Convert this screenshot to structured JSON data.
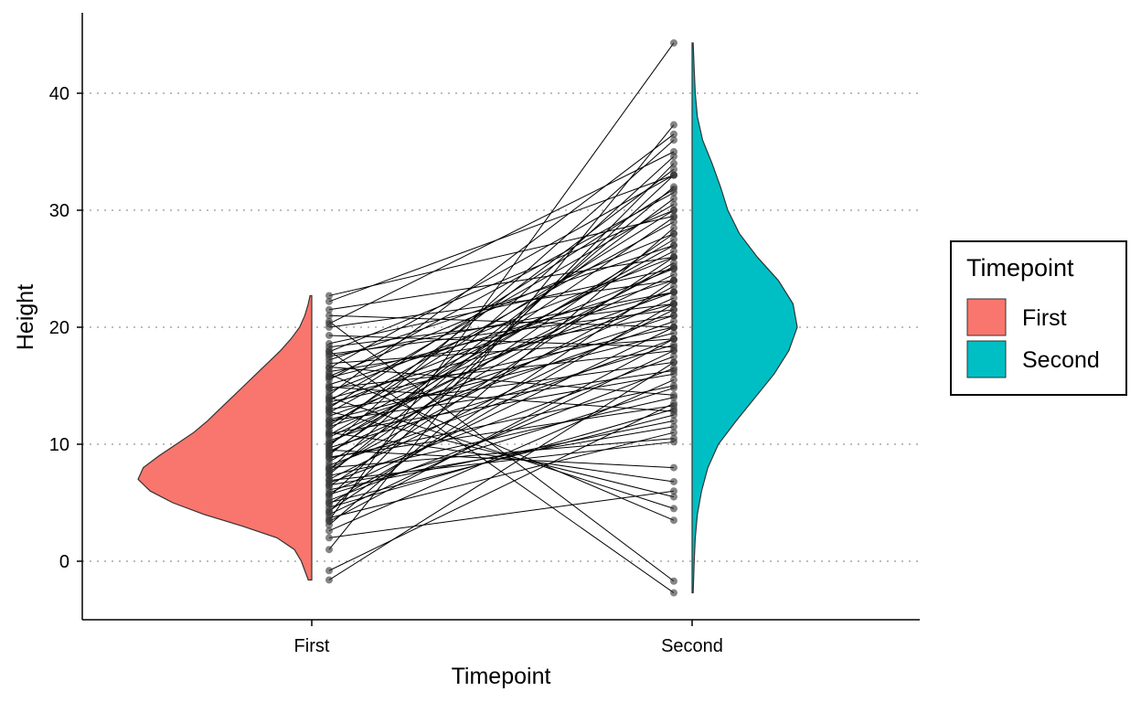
{
  "chart_data": {
    "type": "raincloud",
    "description_free": true,
    "xlabel": "Timepoint",
    "ylabel": "Height",
    "categories": [
      "First",
      "Second"
    ],
    "ylim": [
      -5,
      46
    ],
    "yticks": [
      0,
      10,
      20,
      30,
      40
    ],
    "grid": "horizontal-dotted",
    "legend": {
      "title": "Timepoint",
      "position": "right",
      "entries": [
        {
          "label": "First",
          "color": "#F8766D"
        },
        {
          "label": "Second",
          "color": "#00BFC4"
        }
      ]
    },
    "series": [
      {
        "name": "First",
        "color": "#F8766D",
        "min": -1.6,
        "max": 22.7,
        "mode": 7.2,
        "density": [
          [
            -1.6,
            0.02
          ],
          [
            0,
            0.06
          ],
          [
            1,
            0.1
          ],
          [
            2,
            0.2
          ],
          [
            3,
            0.4
          ],
          [
            4,
            0.62
          ],
          [
            5,
            0.8
          ],
          [
            6,
            0.93
          ],
          [
            7,
            1.0
          ],
          [
            8,
            0.97
          ],
          [
            9,
            0.88
          ],
          [
            10,
            0.78
          ],
          [
            11,
            0.68
          ],
          [
            12,
            0.6
          ],
          [
            13,
            0.53
          ],
          [
            14,
            0.46
          ],
          [
            15,
            0.39
          ],
          [
            16,
            0.32
          ],
          [
            17,
            0.25
          ],
          [
            18,
            0.18
          ],
          [
            19,
            0.12
          ],
          [
            20,
            0.07
          ],
          [
            21,
            0.04
          ],
          [
            22,
            0.02
          ],
          [
            22.7,
            0.01
          ]
        ]
      },
      {
        "name": "Second",
        "color": "#00BFC4",
        "min": -2.7,
        "max": 44.3,
        "mode": 20.0,
        "density": [
          [
            -2.7,
            0.01
          ],
          [
            0,
            0.02
          ],
          [
            2,
            0.03
          ],
          [
            4,
            0.05
          ],
          [
            6,
            0.09
          ],
          [
            8,
            0.15
          ],
          [
            10,
            0.25
          ],
          [
            12,
            0.42
          ],
          [
            14,
            0.6
          ],
          [
            16,
            0.78
          ],
          [
            18,
            0.92
          ],
          [
            20,
            1.0
          ],
          [
            22,
            0.96
          ],
          [
            24,
            0.82
          ],
          [
            26,
            0.62
          ],
          [
            28,
            0.45
          ],
          [
            30,
            0.34
          ],
          [
            32,
            0.27
          ],
          [
            34,
            0.19
          ],
          [
            36,
            0.1
          ],
          [
            38,
            0.05
          ],
          [
            40,
            0.03
          ],
          [
            42,
            0.02
          ],
          [
            44.3,
            0.01
          ]
        ]
      }
    ],
    "paired_points": [
      [
        22.7,
        29.5
      ],
      [
        22.2,
        33
      ],
      [
        21.5,
        26
      ],
      [
        21,
        20
      ],
      [
        20.3,
        35
      ],
      [
        20,
        24
      ],
      [
        18.6,
        25
      ],
      [
        18.3,
        22
      ],
      [
        17.9,
        30
      ],
      [
        17.5,
        23
      ],
      [
        17.2,
        27
      ],
      [
        16.9,
        19
      ],
      [
        16.5,
        33
      ],
      [
        16.2,
        21
      ],
      [
        15.8,
        28
      ],
      [
        15.5,
        31.5
      ],
      [
        15.1,
        24
      ],
      [
        14.8,
        18
      ],
      [
        14.5,
        26
      ],
      [
        14.2,
        36.5
      ],
      [
        13.9,
        22
      ],
      [
        13.6,
        20
      ],
      [
        13.3,
        25
      ],
      [
        13,
        17
      ],
      [
        12.7,
        29
      ],
      [
        12.4,
        23
      ],
      [
        12.1,
        19.5
      ],
      [
        11.8,
        26.5
      ],
      [
        11.5,
        21
      ],
      [
        11.2,
        33.5
      ],
      [
        10.9,
        16
      ],
      [
        10.6,
        24.5
      ],
      [
        10.3,
        20.5
      ],
      [
        10,
        27.5
      ],
      [
        9.7,
        18.5
      ],
      [
        9.4,
        22.5
      ],
      [
        9.1,
        31
      ],
      [
        8.8,
        15
      ],
      [
        8.5,
        25.5
      ],
      [
        8.2,
        19
      ],
      [
        7.9,
        23.5
      ],
      [
        7.6,
        28
      ],
      [
        7.3,
        14
      ],
      [
        7,
        21.5
      ],
      [
        6.7,
        17.5
      ],
      [
        6.4,
        26
      ],
      [
        6.1,
        12
      ],
      [
        5.8,
        20
      ],
      [
        5.5,
        33
      ],
      [
        5.2,
        16.5
      ],
      [
        4.9,
        22
      ],
      [
        4.6,
        13
      ],
      [
        4.3,
        24
      ],
      [
        4,
        18
      ],
      [
        3.7,
        11
      ],
      [
        3.4,
        19
      ],
      [
        3.1,
        28.5
      ],
      [
        2.6,
        15.5
      ],
      [
        2,
        6
      ],
      [
        1,
        37.3
      ],
      [
        -0.8,
        13.5
      ],
      [
        -1.6,
        17
      ],
      [
        20.5,
        -1.7
      ],
      [
        18,
        -2.7
      ],
      [
        16,
        3.5
      ],
      [
        14,
        4.5
      ],
      [
        12.8,
        5.5
      ],
      [
        11,
        6.8
      ],
      [
        9.5,
        8
      ],
      [
        8,
        10.5
      ],
      [
        6.5,
        11.5
      ],
      [
        5,
        12.5
      ],
      [
        3.5,
        44.3
      ],
      [
        4.2,
        34
      ],
      [
        9.8,
        36
      ],
      [
        13.7,
        30.5
      ],
      [
        7.4,
        32
      ],
      [
        10.8,
        27
      ],
      [
        15.7,
        23
      ],
      [
        17.7,
        21.5
      ],
      [
        19.3,
        18.3
      ],
      [
        12,
        16.3
      ],
      [
        5.7,
        14.8
      ],
      [
        8.9,
        13.3
      ],
      [
        14.9,
        12.8
      ],
      [
        16.6,
        14.2
      ],
      [
        6.9,
        10.2
      ],
      [
        11.6,
        30
      ],
      [
        13.1,
        31.8
      ],
      [
        9.2,
        29.4
      ],
      [
        7.8,
        34.6
      ],
      [
        10.1,
        25.2
      ]
    ]
  }
}
